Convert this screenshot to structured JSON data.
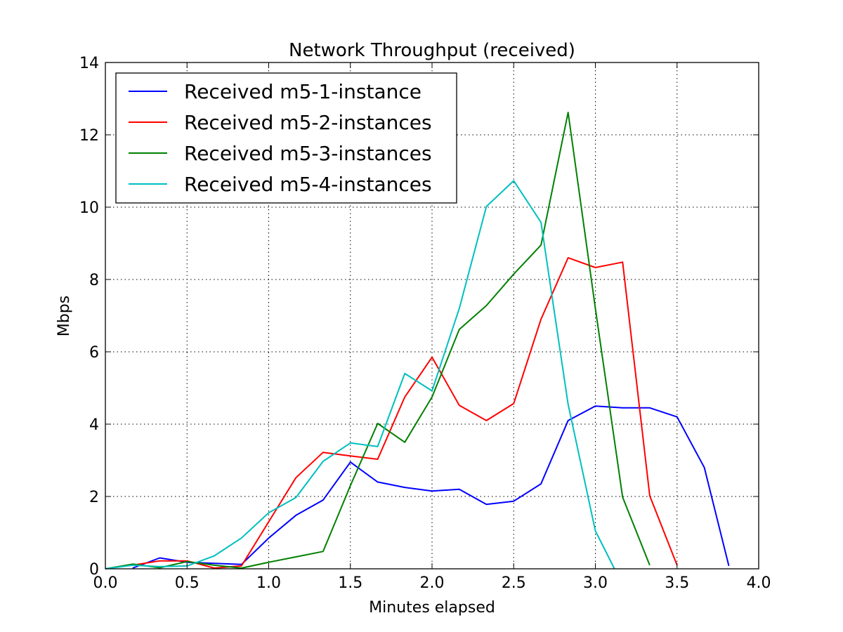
{
  "chart_data": {
    "type": "line",
    "title": "Network Throughput (received)",
    "xlabel": "Minutes elapsed",
    "ylabel": "Mbps",
    "xlim": [
      0.0,
      4.0
    ],
    "ylim": [
      0,
      14
    ],
    "xticks": [
      0.0,
      0.5,
      1.0,
      1.5,
      2.0,
      2.5,
      3.0,
      3.5,
      4.0
    ],
    "xtick_labels": [
      "0.0",
      "0.5",
      "1.0",
      "1.5",
      "2.0",
      "2.5",
      "3.0",
      "3.5",
      "4.0"
    ],
    "yticks": [
      0,
      2,
      4,
      6,
      8,
      10,
      12,
      14
    ],
    "ytick_labels": [
      "0",
      "2",
      "4",
      "6",
      "8",
      "10",
      "12",
      "14"
    ],
    "grid": true,
    "legend_position": "top-left",
    "series": [
      {
        "name": "Received m5-1-instance",
        "color": "#0000ff",
        "x": [
          0.167,
          0.333,
          0.5,
          0.667,
          0.833,
          1.0,
          1.167,
          1.333,
          1.5,
          1.667,
          1.833,
          2.0,
          2.167,
          2.333,
          2.5,
          2.667,
          2.833,
          3.0,
          3.167,
          3.333,
          3.5,
          3.667,
          3.817
        ],
        "y": [
          0.02,
          0.3,
          0.18,
          0.15,
          0.12,
          0.85,
          1.48,
          1.9,
          2.95,
          2.4,
          2.25,
          2.15,
          2.2,
          1.78,
          1.87,
          2.35,
          4.1,
          4.5,
          4.45,
          4.45,
          4.2,
          2.8,
          0.08
        ]
      },
      {
        "name": "Received m5-2-instances",
        "color": "#ff0000",
        "x": [
          0.167,
          0.333,
          0.5,
          0.667,
          0.833,
          1.0,
          1.167,
          1.333,
          1.5,
          1.667,
          1.833,
          2.0,
          2.167,
          2.333,
          2.5,
          2.667,
          2.833,
          3.0,
          3.167,
          3.333,
          3.5
        ],
        "y": [
          0.1,
          0.22,
          0.22,
          0.02,
          0.08,
          1.3,
          2.52,
          3.22,
          3.12,
          3.03,
          4.75,
          5.85,
          4.52,
          4.1,
          4.57,
          6.9,
          8.6,
          8.33,
          8.48,
          2.02,
          0.1
        ]
      },
      {
        "name": "Received m5-3-instances",
        "color": "#008000",
        "x": [
          0.0,
          0.167,
          0.333,
          0.5,
          0.667,
          0.833,
          1.0,
          1.167,
          1.333,
          1.5,
          1.667,
          1.833,
          2.0,
          2.167,
          2.333,
          2.5,
          2.667,
          2.833,
          3.0,
          3.167,
          3.333
        ],
        "y": [
          0.0,
          0.13,
          0.03,
          0.2,
          0.1,
          0.02,
          0.18,
          0.33,
          0.48,
          2.3,
          4.02,
          3.5,
          4.75,
          6.62,
          7.28,
          8.15,
          8.95,
          12.62,
          7.2,
          1.98,
          0.1
        ]
      },
      {
        "name": "Received m5-4-instances",
        "color": "#00bfbf",
        "x": [
          0.0,
          0.167,
          0.333,
          0.5,
          0.667,
          0.833,
          1.0,
          1.167,
          1.333,
          1.5,
          1.667,
          1.833,
          2.0,
          2.167,
          2.333,
          2.5,
          2.667,
          2.833,
          3.0,
          3.117
        ],
        "y": [
          0.0,
          0.1,
          0.06,
          0.08,
          0.36,
          0.85,
          1.55,
          1.97,
          2.97,
          3.48,
          3.38,
          5.4,
          4.92,
          7.2,
          10.02,
          10.73,
          9.58,
          4.55,
          1.05,
          0.0
        ]
      }
    ]
  }
}
